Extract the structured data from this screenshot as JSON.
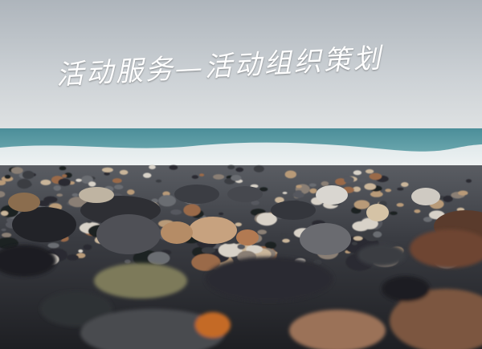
{
  "banner": {
    "headline": "活动服务—活动组织策划"
  },
  "scene": {
    "sky_color": "#c9ced3",
    "sea_color": "#3f8a97",
    "surf_color": "#e8eef0",
    "pebble_colors": [
      "#2b2c31",
      "#3a3c42",
      "#56585e",
      "#8a7f74",
      "#b89a78",
      "#c9b59a",
      "#6b6d72",
      "#1f2024",
      "#9a6a4a",
      "#d8d2c8"
    ]
  }
}
